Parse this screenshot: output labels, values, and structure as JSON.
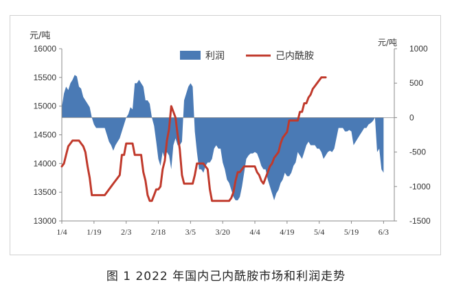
{
  "caption": "图 1  2022 年国内己内酰胺市场和利润走势",
  "chart_data": {
    "type": "area+line",
    "y_left_unit": "元/吨",
    "y_right_unit": "元/吨",
    "y_left_ticks": [
      13000,
      13500,
      14000,
      14500,
      15000,
      15500,
      16000
    ],
    "y_right_ticks": [
      -1500,
      -1000,
      -500,
      0,
      500,
      1000
    ],
    "ylim_left": [
      13000,
      16000
    ],
    "ylim_right": [
      -1500,
      1000
    ],
    "x_tick_labels": [
      "1/4",
      "1/19",
      "2/3",
      "2/18",
      "3/5",
      "3/20",
      "4/4",
      "4/19",
      "5/4",
      "5/19",
      "6/3"
    ],
    "x_tick_days": [
      0,
      15,
      30,
      45,
      60,
      75,
      90,
      105,
      120,
      135,
      150
    ],
    "xlim_days": [
      0,
      155
    ],
    "legend": {
      "position": "top",
      "items": [
        "利润",
        "己内酰胺"
      ]
    },
    "colors": {
      "profit": "#4a7ab5",
      "price": "#c0392b",
      "axis": "#888888",
      "text": "#333333"
    },
    "series": [
      {
        "name": "利润",
        "axis": "right",
        "style": "area",
        "points": [
          [
            0,
            150
          ],
          [
            1,
            350
          ],
          [
            2,
            450
          ],
          [
            3,
            400
          ],
          [
            4,
            500
          ],
          [
            5,
            550
          ],
          [
            6,
            620
          ],
          [
            7,
            600
          ],
          [
            8,
            450
          ],
          [
            9,
            420
          ],
          [
            10,
            300
          ],
          [
            11,
            250
          ],
          [
            12,
            200
          ],
          [
            13,
            150
          ],
          [
            14,
            0
          ],
          [
            15,
            -100
          ],
          [
            16,
            -150
          ],
          [
            17,
            -150
          ],
          [
            18,
            -150
          ],
          [
            19,
            -150
          ],
          [
            20,
            -150
          ],
          [
            21,
            -250
          ],
          [
            22,
            -350
          ],
          [
            23,
            -400
          ],
          [
            24,
            -480
          ],
          [
            25,
            -400
          ],
          [
            26,
            -350
          ],
          [
            27,
            -300
          ],
          [
            28,
            -200
          ],
          [
            29,
            -100
          ],
          [
            30,
            0
          ],
          [
            31,
            50
          ],
          [
            32,
            150
          ],
          [
            33,
            120
          ],
          [
            34,
            500
          ],
          [
            35,
            500
          ],
          [
            36,
            550
          ],
          [
            37,
            500
          ],
          [
            38,
            450
          ],
          [
            39,
            250
          ],
          [
            40,
            250
          ],
          [
            41,
            200
          ],
          [
            42,
            0
          ],
          [
            43,
            -120
          ],
          [
            44,
            -350
          ],
          [
            45,
            -600
          ],
          [
            46,
            -700
          ],
          [
            47,
            -500
          ],
          [
            48,
            -600
          ],
          [
            49,
            -500
          ],
          [
            50,
            -550
          ],
          [
            51,
            -750
          ],
          [
            52,
            -400
          ],
          [
            53,
            -300
          ],
          [
            54,
            -400
          ],
          [
            55,
            -400
          ],
          [
            56,
            -350
          ],
          [
            57,
            250
          ],
          [
            58,
            350
          ],
          [
            59,
            450
          ],
          [
            60,
            500
          ],
          [
            61,
            450
          ],
          [
            62,
            -200
          ],
          [
            63,
            -500
          ],
          [
            64,
            -750
          ],
          [
            65,
            -750
          ],
          [
            66,
            -800
          ],
          [
            67,
            -700
          ],
          [
            68,
            -650
          ],
          [
            69,
            -650
          ],
          [
            70,
            -600
          ],
          [
            71,
            -450
          ],
          [
            72,
            -400
          ],
          [
            73,
            -450
          ],
          [
            74,
            -450
          ],
          [
            75,
            -650
          ],
          [
            76,
            -750
          ],
          [
            77,
            -900
          ],
          [
            78,
            -950
          ],
          [
            79,
            -1050
          ],
          [
            80,
            -1150
          ],
          [
            81,
            -1200
          ],
          [
            82,
            -1200
          ],
          [
            83,
            -1150
          ],
          [
            84,
            -1000
          ],
          [
            85,
            -800
          ],
          [
            86,
            -600
          ],
          [
            87,
            -550
          ],
          [
            88,
            -520
          ],
          [
            89,
            -520
          ],
          [
            90,
            -500
          ],
          [
            91,
            -520
          ],
          [
            92,
            -600
          ],
          [
            93,
            -700
          ],
          [
            94,
            -750
          ],
          [
            95,
            -750
          ],
          [
            96,
            -900
          ],
          [
            97,
            -1000
          ],
          [
            98,
            -1100
          ],
          [
            99,
            -1200
          ],
          [
            100,
            -1100
          ],
          [
            101,
            -1050
          ],
          [
            102,
            -950
          ],
          [
            103,
            -900
          ],
          [
            104,
            -800
          ],
          [
            105,
            -850
          ],
          [
            106,
            -850
          ],
          [
            107,
            -800
          ],
          [
            108,
            -700
          ],
          [
            109,
            -650
          ],
          [
            110,
            -500
          ],
          [
            111,
            -550
          ],
          [
            112,
            -600
          ],
          [
            113,
            -500
          ],
          [
            114,
            -400
          ],
          [
            115,
            -350
          ],
          [
            116,
            -400
          ],
          [
            117,
            -400
          ],
          [
            118,
            -400
          ],
          [
            119,
            -450
          ],
          [
            120,
            -450
          ],
          [
            121,
            -500
          ],
          [
            122,
            -600
          ],
          [
            123,
            -550
          ],
          [
            124,
            -500
          ],
          [
            125,
            -480
          ],
          [
            126,
            -500
          ],
          [
            127,
            -450
          ],
          [
            128,
            -300
          ],
          [
            129,
            -150
          ],
          [
            130,
            -150
          ],
          [
            131,
            -150
          ],
          [
            132,
            -200
          ],
          [
            133,
            -200
          ],
          [
            134,
            -180
          ],
          [
            135,
            -200
          ],
          [
            136,
            -400
          ],
          [
            137,
            -350
          ],
          [
            138,
            -300
          ],
          [
            139,
            -250
          ],
          [
            140,
            -200
          ],
          [
            141,
            -150
          ],
          [
            142,
            -150
          ],
          [
            143,
            -100
          ],
          [
            144,
            -80
          ],
          [
            145,
            -50
          ],
          [
            146,
            0
          ],
          [
            147,
            -500
          ],
          [
            148,
            -450
          ],
          [
            149,
            -750
          ],
          [
            150,
            -800
          ]
        ]
      },
      {
        "name": "己内酰胺",
        "axis": "left",
        "style": "line",
        "points": [
          [
            0,
            13950
          ],
          [
            1,
            14000
          ],
          [
            2,
            14150
          ],
          [
            3,
            14300
          ],
          [
            4,
            14350
          ],
          [
            5,
            14400
          ],
          [
            6,
            14400
          ],
          [
            7,
            14400
          ],
          [
            8,
            14400
          ],
          [
            9,
            14350
          ],
          [
            10,
            14300
          ],
          [
            11,
            14200
          ],
          [
            12,
            13950
          ],
          [
            13,
            13750
          ],
          [
            14,
            13450
          ],
          [
            15,
            13450
          ],
          [
            16,
            13450
          ],
          [
            17,
            13450
          ],
          [
            18,
            13450
          ],
          [
            19,
            13450
          ],
          [
            20,
            13450
          ],
          [
            21,
            13500
          ],
          [
            22,
            13550
          ],
          [
            23,
            13600
          ],
          [
            24,
            13650
          ],
          [
            25,
            13700
          ],
          [
            26,
            13750
          ],
          [
            27,
            13800
          ],
          [
            28,
            14150
          ],
          [
            29,
            14150
          ],
          [
            30,
            14350
          ],
          [
            31,
            14350
          ],
          [
            32,
            14350
          ],
          [
            33,
            14350
          ],
          [
            34,
            14150
          ],
          [
            35,
            14150
          ],
          [
            36,
            14150
          ],
          [
            37,
            14150
          ],
          [
            38,
            13850
          ],
          [
            39,
            13700
          ],
          [
            40,
            13450
          ],
          [
            41,
            13350
          ],
          [
            42,
            13350
          ],
          [
            43,
            13450
          ],
          [
            44,
            13550
          ],
          [
            45,
            13550
          ],
          [
            46,
            13600
          ],
          [
            47,
            13900
          ],
          [
            48,
            14050
          ],
          [
            49,
            14400
          ],
          [
            50,
            14600
          ],
          [
            51,
            15000
          ],
          [
            52,
            14900
          ],
          [
            53,
            14800
          ],
          [
            54,
            14500
          ],
          [
            55,
            14250
          ],
          [
            56,
            13800
          ],
          [
            57,
            13650
          ],
          [
            58,
            13650
          ],
          [
            59,
            13650
          ],
          [
            60,
            13650
          ],
          [
            61,
            13650
          ],
          [
            62,
            13800
          ],
          [
            63,
            14000
          ],
          [
            64,
            14000
          ],
          [
            65,
            14000
          ],
          [
            66,
            14000
          ],
          [
            67,
            13950
          ],
          [
            68,
            13900
          ],
          [
            69,
            13550
          ],
          [
            70,
            13350
          ],
          [
            71,
            13350
          ],
          [
            72,
            13350
          ],
          [
            73,
            13350
          ],
          [
            74,
            13350
          ],
          [
            75,
            13350
          ],
          [
            76,
            13350
          ],
          [
            77,
            13350
          ],
          [
            78,
            13350
          ],
          [
            79,
            13400
          ],
          [
            80,
            13500
          ],
          [
            81,
            13700
          ],
          [
            82,
            13850
          ],
          [
            83,
            13850
          ],
          [
            84,
            13900
          ],
          [
            85,
            13950
          ],
          [
            86,
            13950
          ],
          [
            87,
            13950
          ],
          [
            88,
            13950
          ],
          [
            89,
            13950
          ],
          [
            90,
            13950
          ],
          [
            91,
            13850
          ],
          [
            92,
            13800
          ],
          [
            93,
            13700
          ],
          [
            94,
            13650
          ],
          [
            95,
            13750
          ],
          [
            96,
            13850
          ],
          [
            97,
            13950
          ],
          [
            98,
            14000
          ],
          [
            99,
            14100
          ],
          [
            100,
            14150
          ],
          [
            101,
            14200
          ],
          [
            102,
            14350
          ],
          [
            103,
            14450
          ],
          [
            104,
            14500
          ],
          [
            105,
            14550
          ],
          [
            106,
            14750
          ],
          [
            107,
            14750
          ],
          [
            108,
            14750
          ],
          [
            109,
            14750
          ],
          [
            110,
            14750
          ],
          [
            111,
            14900
          ],
          [
            112,
            14900
          ],
          [
            113,
            15050
          ],
          [
            114,
            15050
          ],
          [
            115,
            15150
          ],
          [
            116,
            15200
          ],
          [
            117,
            15300
          ],
          [
            118,
            15350
          ],
          [
            119,
            15400
          ],
          [
            120,
            15450
          ],
          [
            121,
            15500
          ],
          [
            122,
            15500
          ],
          [
            123,
            15500
          ]
        ]
      }
    ]
  }
}
